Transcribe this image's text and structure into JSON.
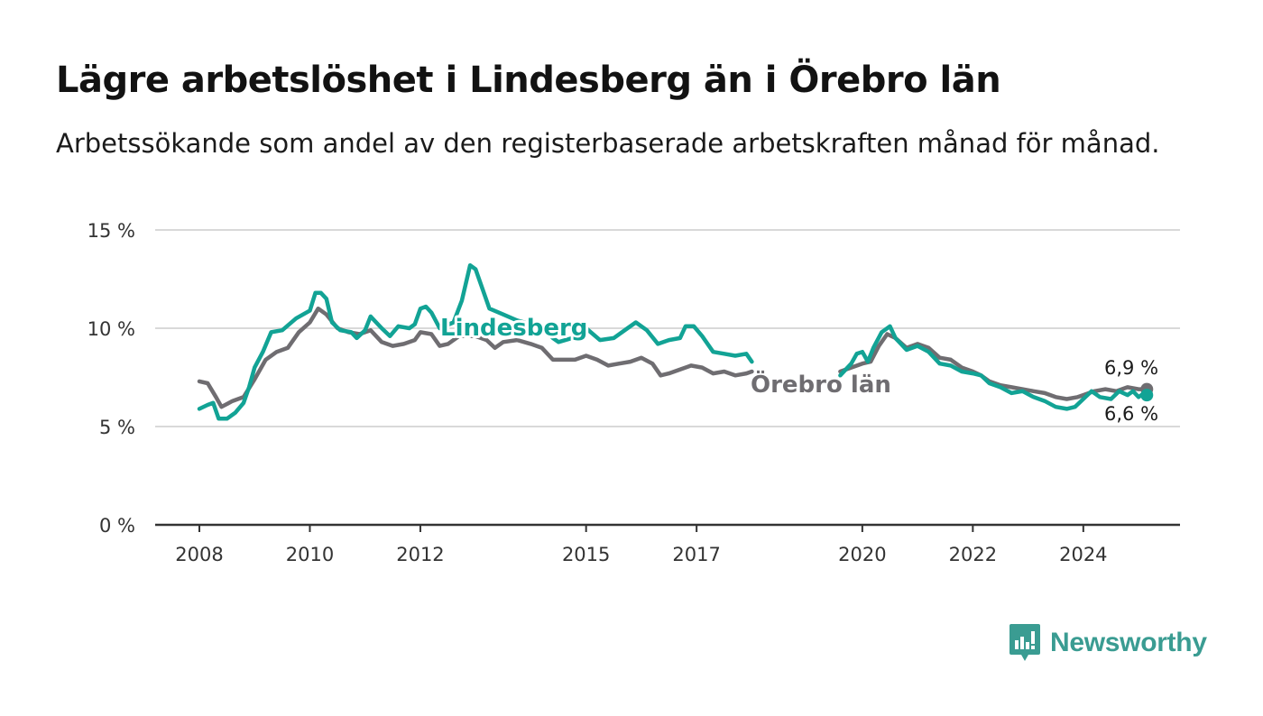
{
  "title": "Lägre arbetslöshet i Lindesberg än i Örebro län",
  "subtitle": "Arbetssökande som andel av den registerbaserade arbetskraften månad för månad.",
  "brand": {
    "name": "Newsworthy",
    "icon": "newsworthy-logo-icon"
  },
  "colors": {
    "lindesberg": "#12a395",
    "orebro": "#6f6d71",
    "grid": "#d9d9d9",
    "axis": "#333333",
    "brand": "#3a9c92"
  },
  "chart_data": {
    "type": "line",
    "ylim": [
      0,
      15
    ],
    "yticks": [
      0,
      5,
      10,
      15
    ],
    "ytick_labels": [
      "0 %",
      "5 %",
      "10 %",
      "15 %"
    ],
    "xlim": [
      2007.2,
      2025.75
    ],
    "xticks": [
      2008,
      2010,
      2012,
      2015,
      2017,
      2020,
      2022,
      2024
    ],
    "xtick_labels": [
      "2008",
      "2010",
      "2012",
      "2015",
      "2017",
      "2020",
      "2022",
      "2024"
    ],
    "grid": true,
    "legend": "inline labels",
    "series": [
      {
        "name": "Lindesberg",
        "end_label": "6,6 %",
        "segments": [
          [
            [
              2008.0,
              5.9
            ],
            [
              2008.15,
              6.1
            ],
            [
              2008.25,
              6.2
            ],
            [
              2008.35,
              5.4
            ],
            [
              2008.5,
              5.4
            ],
            [
              2008.65,
              5.7
            ],
            [
              2008.8,
              6.2
            ],
            [
              2008.9,
              7.0
            ],
            [
              2009.0,
              8.0
            ],
            [
              2009.15,
              8.8
            ],
            [
              2009.3,
              9.8
            ],
            [
              2009.5,
              9.9
            ],
            [
              2009.75,
              10.5
            ],
            [
              2010.0,
              10.9
            ],
            [
              2010.1,
              11.8
            ],
            [
              2010.2,
              11.8
            ],
            [
              2010.3,
              11.5
            ],
            [
              2010.4,
              10.3
            ],
            [
              2010.55,
              9.9
            ],
            [
              2010.75,
              9.8
            ],
            [
              2010.85,
              9.5
            ],
            [
              2011.0,
              9.9
            ],
            [
              2011.1,
              10.6
            ],
            [
              2011.3,
              10.0
            ],
            [
              2011.45,
              9.6
            ],
            [
              2011.6,
              10.1
            ],
            [
              2011.8,
              10.0
            ],
            [
              2011.9,
              10.2
            ],
            [
              2012.0,
              11.0
            ],
            [
              2012.1,
              11.1
            ],
            [
              2012.2,
              10.8
            ],
            [
              2012.35,
              10.0
            ],
            [
              2012.6,
              10.3
            ],
            [
              2012.75,
              11.4
            ],
            [
              2012.9,
              13.2
            ],
            [
              2013.0,
              13.0
            ],
            [
              2013.1,
              12.2
            ],
            [
              2013.25,
              11.0
            ],
            [
              2013.5,
              10.7
            ],
            [
              2013.75,
              10.4
            ],
            [
              2014.0,
              10.2
            ],
            [
              2014.25,
              9.9
            ],
            [
              2014.4,
              9.5
            ],
            [
              2014.5,
              9.3
            ],
            [
              2014.75,
              9.5
            ],
            [
              2014.85,
              10.1
            ],
            [
              2015.0,
              10.0
            ],
            [
              2015.25,
              9.4
            ],
            [
              2015.5,
              9.5
            ],
            [
              2015.75,
              10.0
            ],
            [
              2015.9,
              10.3
            ],
            [
              2016.1,
              9.9
            ],
            [
              2016.3,
              9.2
            ],
            [
              2016.5,
              9.4
            ],
            [
              2016.7,
              9.5
            ],
            [
              2016.8,
              10.1
            ],
            [
              2016.95,
              10.1
            ],
            [
              2017.1,
              9.6
            ],
            [
              2017.3,
              8.8
            ],
            [
              2017.5,
              8.7
            ],
            [
              2017.7,
              8.6
            ],
            [
              2017.9,
              8.7
            ],
            [
              2018.0,
              8.3
            ]
          ],
          [
            [
              2019.6,
              7.6
            ],
            [
              2019.8,
              8.2
            ],
            [
              2019.9,
              8.7
            ],
            [
              2020.0,
              8.8
            ],
            [
              2020.1,
              8.3
            ],
            [
              2020.2,
              9.0
            ],
            [
              2020.35,
              9.8
            ],
            [
              2020.5,
              10.1
            ],
            [
              2020.6,
              9.5
            ],
            [
              2020.8,
              8.9
            ],
            [
              2021.0,
              9.1
            ],
            [
              2021.2,
              8.8
            ],
            [
              2021.4,
              8.2
            ],
            [
              2021.6,
              8.1
            ],
            [
              2021.8,
              7.8
            ],
            [
              2022.0,
              7.7
            ],
            [
              2022.15,
              7.6
            ],
            [
              2022.3,
              7.2
            ],
            [
              2022.5,
              7.0
            ],
            [
              2022.7,
              6.7
            ],
            [
              2022.9,
              6.8
            ],
            [
              2023.1,
              6.5
            ],
            [
              2023.3,
              6.3
            ],
            [
              2023.5,
              6.0
            ],
            [
              2023.7,
              5.9
            ],
            [
              2023.85,
              6.0
            ],
            [
              2024.0,
              6.4
            ],
            [
              2024.15,
              6.8
            ],
            [
              2024.3,
              6.5
            ],
            [
              2024.5,
              6.4
            ],
            [
              2024.65,
              6.8
            ],
            [
              2024.8,
              6.6
            ],
            [
              2024.9,
              6.8
            ],
            [
              2025.0,
              6.5
            ],
            [
              2025.1,
              6.7
            ],
            [
              2025.15,
              6.6
            ]
          ]
        ]
      },
      {
        "name": "Örebro län",
        "end_label": "6,9 %",
        "segments": [
          [
            [
              2008.0,
              7.3
            ],
            [
              2008.15,
              7.2
            ],
            [
              2008.3,
              6.5
            ],
            [
              2008.4,
              6.0
            ],
            [
              2008.6,
              6.3
            ],
            [
              2008.8,
              6.5
            ],
            [
              2009.0,
              7.4
            ],
            [
              2009.2,
              8.4
            ],
            [
              2009.4,
              8.8
            ],
            [
              2009.6,
              9.0
            ],
            [
              2009.8,
              9.8
            ],
            [
              2010.0,
              10.3
            ],
            [
              2010.15,
              11.0
            ],
            [
              2010.3,
              10.7
            ],
            [
              2010.5,
              10.0
            ],
            [
              2010.7,
              9.8
            ],
            [
              2010.9,
              9.7
            ],
            [
              2011.1,
              9.9
            ],
            [
              2011.3,
              9.3
            ],
            [
              2011.5,
              9.1
            ],
            [
              2011.7,
              9.2
            ],
            [
              2011.9,
              9.4
            ],
            [
              2012.0,
              9.8
            ],
            [
              2012.2,
              9.7
            ],
            [
              2012.35,
              9.1
            ],
            [
              2012.5,
              9.2
            ],
            [
              2012.7,
              9.6
            ],
            [
              2013.0,
              9.6
            ],
            [
              2013.2,
              9.4
            ],
            [
              2013.35,
              9.0
            ],
            [
              2013.5,
              9.3
            ],
            [
              2013.75,
              9.4
            ],
            [
              2014.0,
              9.2
            ],
            [
              2014.2,
              9.0
            ],
            [
              2014.4,
              8.4
            ],
            [
              2014.6,
              8.4
            ],
            [
              2014.8,
              8.4
            ],
            [
              2015.0,
              8.6
            ],
            [
              2015.2,
              8.4
            ],
            [
              2015.4,
              8.1
            ],
            [
              2015.6,
              8.2
            ],
            [
              2015.8,
              8.3
            ],
            [
              2016.0,
              8.5
            ],
            [
              2016.2,
              8.2
            ],
            [
              2016.35,
              7.6
            ],
            [
              2016.5,
              7.7
            ],
            [
              2016.7,
              7.9
            ],
            [
              2016.9,
              8.1
            ],
            [
              2017.1,
              8.0
            ],
            [
              2017.3,
              7.7
            ],
            [
              2017.5,
              7.8
            ],
            [
              2017.7,
              7.6
            ],
            [
              2017.9,
              7.7
            ],
            [
              2018.0,
              7.8
            ]
          ],
          [
            [
              2019.6,
              7.8
            ],
            [
              2019.8,
              8.0
            ],
            [
              2020.0,
              8.2
            ],
            [
              2020.15,
              8.3
            ],
            [
              2020.3,
              9.1
            ],
            [
              2020.45,
              9.7
            ],
            [
              2020.6,
              9.5
            ],
            [
              2020.8,
              9.0
            ],
            [
              2021.0,
              9.2
            ],
            [
              2021.2,
              9.0
            ],
            [
              2021.4,
              8.5
            ],
            [
              2021.6,
              8.4
            ],
            [
              2021.8,
              8.0
            ],
            [
              2022.0,
              7.8
            ],
            [
              2022.15,
              7.6
            ],
            [
              2022.3,
              7.3
            ],
            [
              2022.5,
              7.1
            ],
            [
              2022.7,
              7.0
            ],
            [
              2022.9,
              6.9
            ],
            [
              2023.1,
              6.8
            ],
            [
              2023.3,
              6.7
            ],
            [
              2023.5,
              6.5
            ],
            [
              2023.7,
              6.4
            ],
            [
              2023.9,
              6.5
            ],
            [
              2024.0,
              6.6
            ],
            [
              2024.2,
              6.8
            ],
            [
              2024.4,
              6.9
            ],
            [
              2024.6,
              6.8
            ],
            [
              2024.8,
              7.0
            ],
            [
              2025.0,
              6.9
            ],
            [
              2025.15,
              6.9
            ]
          ]
        ]
      }
    ]
  }
}
